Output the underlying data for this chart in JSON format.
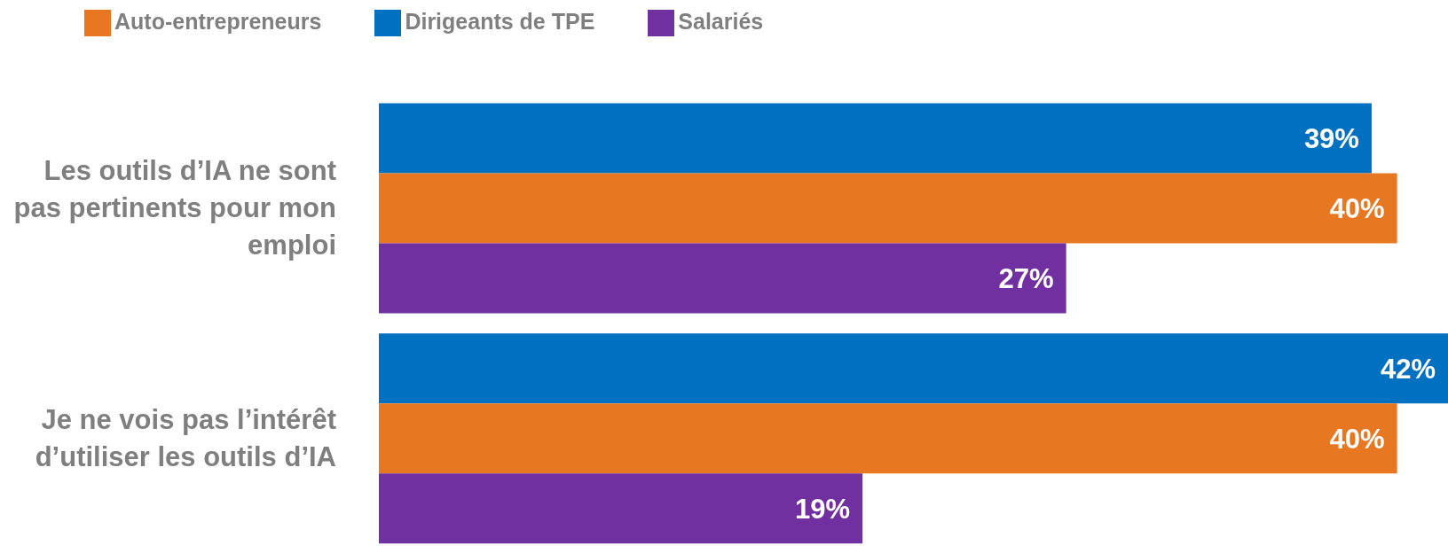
{
  "chart_data": {
    "type": "bar",
    "orientation": "horizontal",
    "categories": [
      "Les outils d’IA ne sont pas pertinents pour mon emploi",
      "Je ne vois pas l’intérêt d’utiliser les outils d’IA"
    ],
    "series": [
      {
        "name": "Dirigeants de TPE",
        "color": "#0070c0",
        "values": [
          39,
          42
        ],
        "value_labels": [
          "39%",
          "42%"
        ]
      },
      {
        "name": "Auto-entrepreneurs",
        "color": "#e87722",
        "values": [
          40,
          40
        ],
        "value_labels": [
          "40%",
          "40%"
        ]
      },
      {
        "name": "Salariés",
        "color": "#7030a0",
        "values": [
          27,
          19
        ],
        "value_labels": [
          "27%",
          "19%"
        ]
      }
    ],
    "legend": "top left",
    "grid": false
  }
}
